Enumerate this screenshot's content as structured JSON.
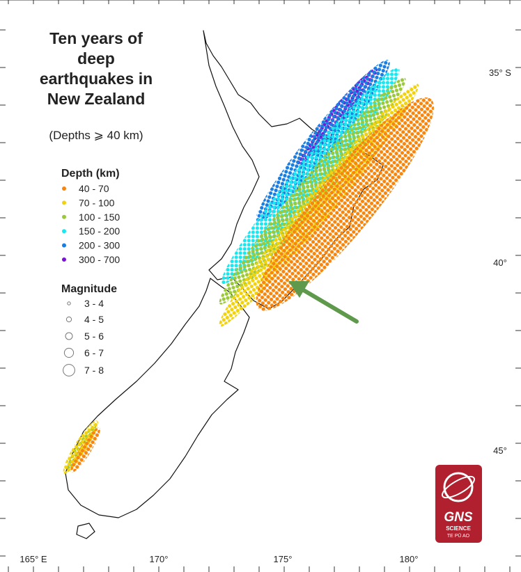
{
  "title_lines": [
    "Ten years of",
    "deep",
    "earthquakes in",
    "New Zealand"
  ],
  "subtitle": "(Depths ⩾ 40 km)",
  "legend": {
    "depth": {
      "title": "Depth (km)",
      "items": [
        {
          "label": "40 - 70",
          "color": "#f7860f"
        },
        {
          "label": "70 - 100",
          "color": "#f2d20c"
        },
        {
          "label": "100 - 150",
          "color": "#9bc93a"
        },
        {
          "label": "150 - 200",
          "color": "#19e8f0"
        },
        {
          "label": "200 - 300",
          "color": "#1a7de0"
        },
        {
          "label": "300 - 700",
          "color": "#7a12d6"
        }
      ]
    },
    "magnitude": {
      "title": "Magnitude",
      "items": [
        "3 - 4",
        "4 - 5",
        "5 - 6",
        "6 - 7",
        "7 - 8"
      ]
    }
  },
  "lat_labels": [
    "35° S",
    "40°",
    "45°"
  ],
  "lon_labels": [
    "165° E",
    "170°",
    "175°",
    "180°"
  ],
  "logo": {
    "name": "GNS",
    "line1": "SCIENCE",
    "line2": "TE PŪ AO"
  }
}
